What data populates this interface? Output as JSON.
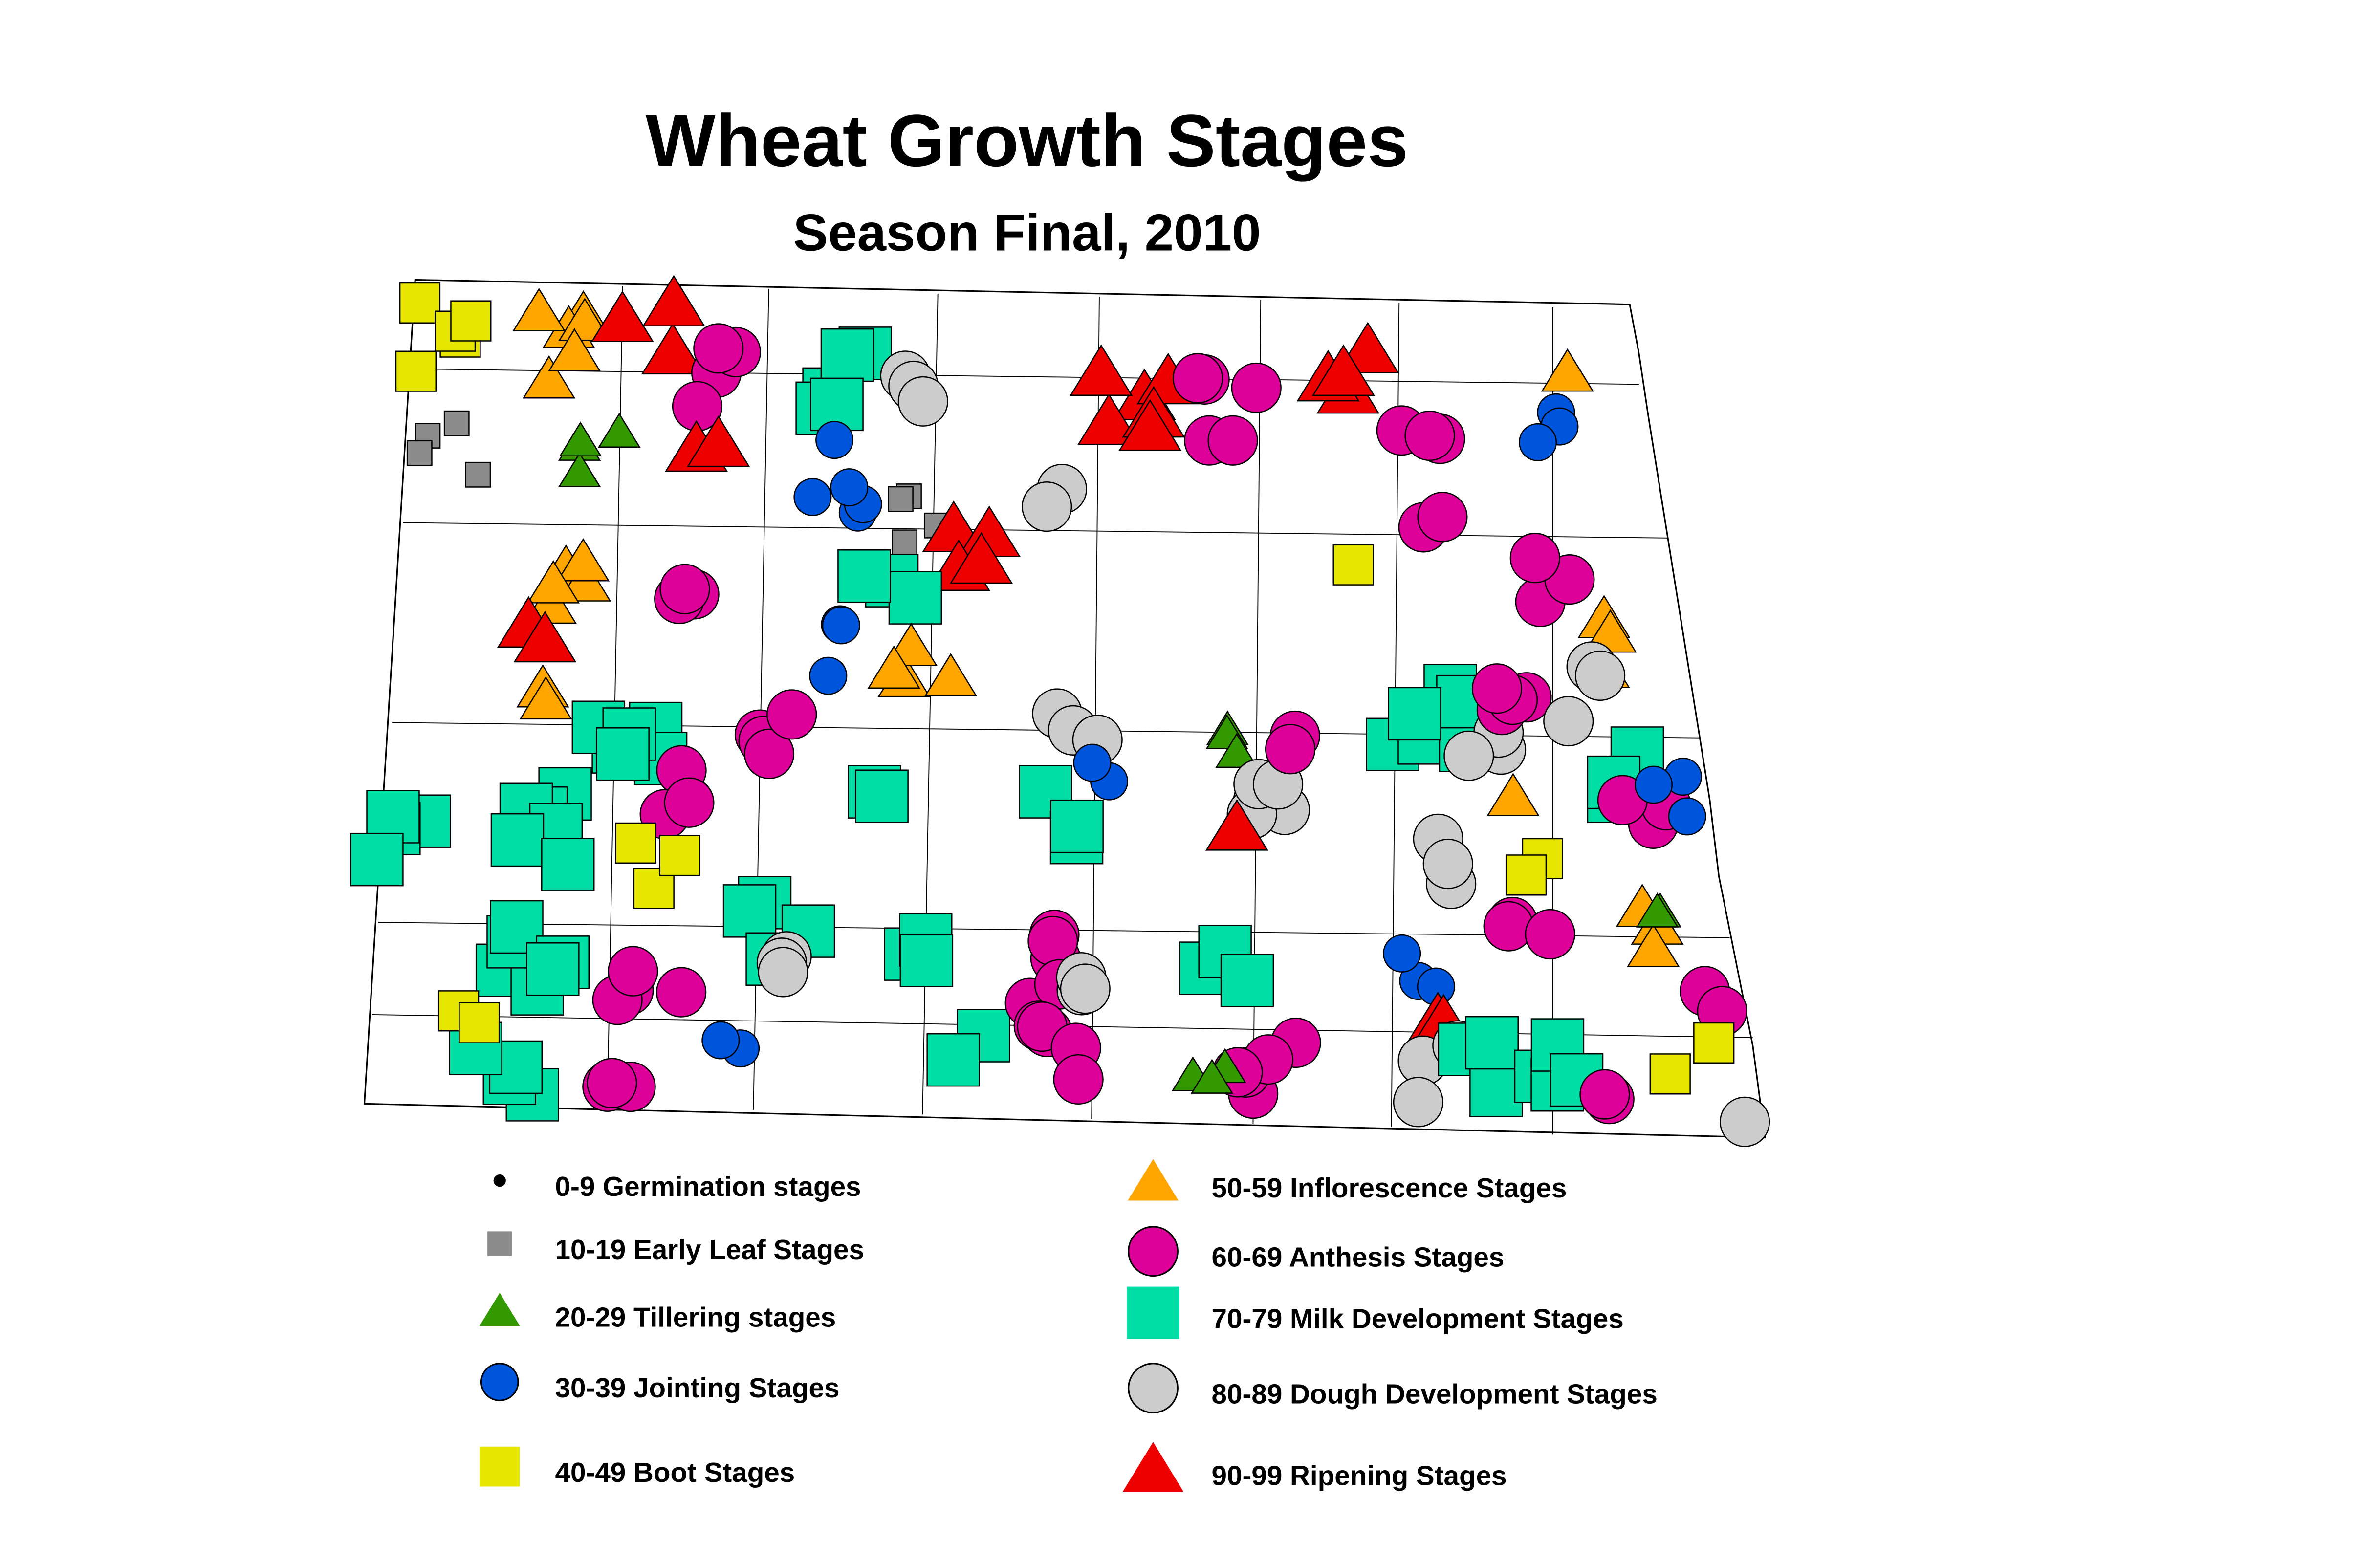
{
  "header": {
    "title": "Wheat Growth Stages",
    "subtitle": "Season Final, 2010"
  },
  "legend": [
    {
      "label": "0-9 Germination stages"
    },
    {
      "label": "10-19 Early Leaf Stages"
    },
    {
      "label": "20-29 Tillering stages"
    },
    {
      "label": "30-39 Jointing Stages"
    },
    {
      "label": "40-49 Boot Stages"
    },
    {
      "label": "50-59 Inflorescence Stages"
    },
    {
      "label": "60-69 Anthesis Stages"
    },
    {
      "label": "70-79 Milk Development Stages"
    },
    {
      "label": "80-89 Dough Development Stages"
    },
    {
      "label": "90-99 Ripening Stages"
    }
  ]
}
